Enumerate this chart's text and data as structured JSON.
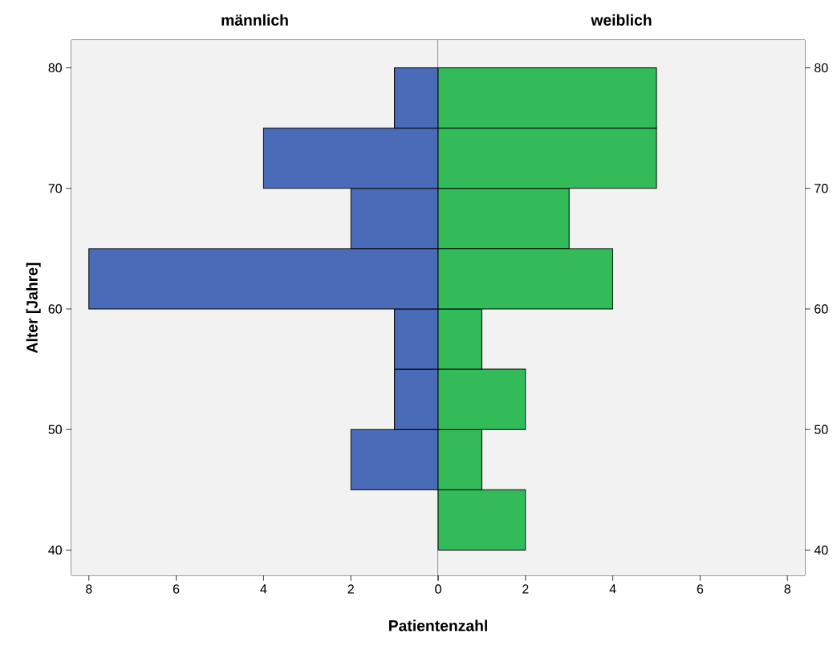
{
  "chart_data": [
    {
      "type": "histogram",
      "orientation": "horizontal",
      "title": "männlich",
      "xlabel": "Patientenzahl",
      "ylabel": "Alter [Jahre]",
      "bins": [
        40,
        45,
        50,
        55,
        60,
        65,
        70,
        75,
        80
      ],
      "values": [
        0,
        2,
        1,
        1,
        8,
        2,
        4,
        1
      ],
      "color": "#4a6bb8",
      "xlim": [
        8.4,
        0
      ],
      "xticks": [
        8,
        6,
        4,
        2,
        0
      ],
      "ylim": [
        37.9,
        82.3
      ],
      "yticks": [
        40,
        50,
        60,
        70,
        80
      ]
    },
    {
      "type": "histogram",
      "orientation": "horizontal",
      "title": "weiblich",
      "bins": [
        40,
        45,
        50,
        55,
        60,
        65,
        70,
        75,
        80
      ],
      "values": [
        2,
        1,
        2,
        1,
        4,
        3,
        5,
        5
      ],
      "color": "#33bb5a",
      "xlim": [
        0,
        8.4
      ],
      "xticks": [
        {
          "value": 0,
          "label": null
        },
        2,
        4,
        6,
        8
      ],
      "ylim": [
        37.9,
        82.3
      ],
      "yticks": [
        40,
        50,
        60,
        70,
        80
      ]
    }
  ]
}
